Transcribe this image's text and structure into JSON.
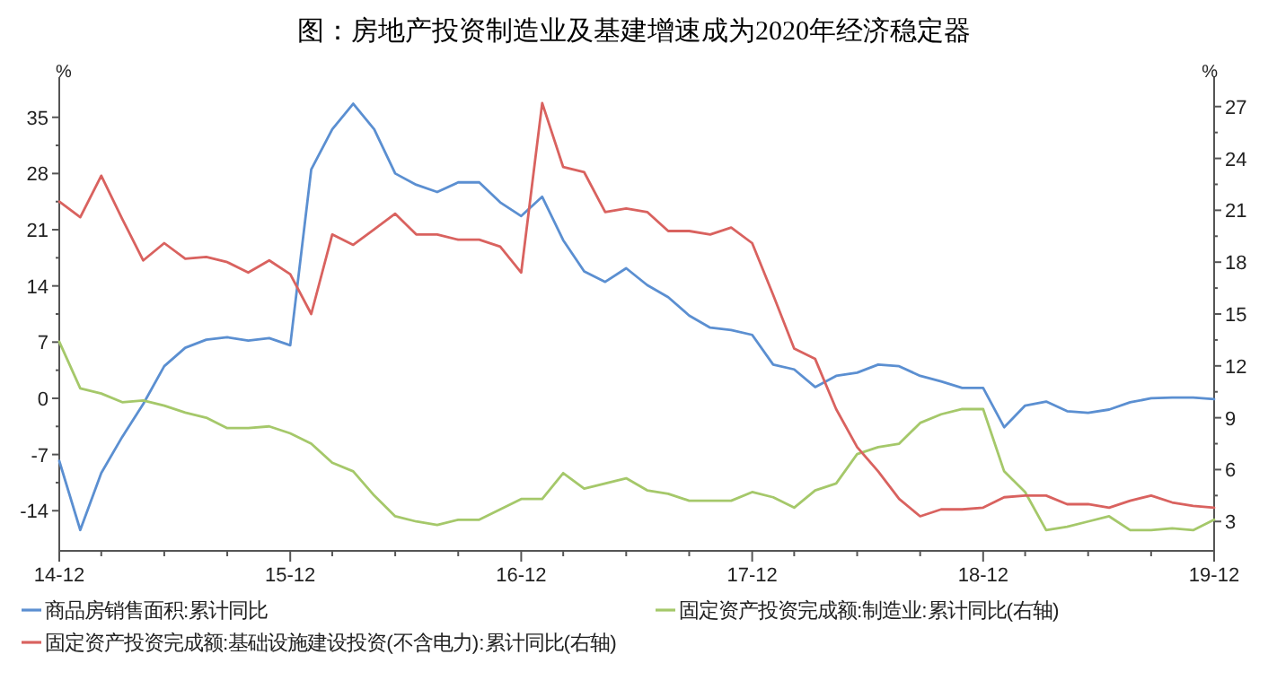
{
  "chart_data": {
    "type": "line",
    "title": "图：房地产投资制造业及基建增速成为2020年经济稳定器",
    "ylabel": "%",
    "y2label": "%",
    "categories": [
      "14-12",
      null,
      null,
      null,
      null,
      null,
      null,
      null,
      null,
      null,
      null,
      "15-12",
      null,
      null,
      null,
      null,
      null,
      null,
      null,
      null,
      null,
      null,
      "16-12",
      null,
      null,
      null,
      null,
      null,
      null,
      null,
      null,
      null,
      null,
      "17-12",
      null,
      null,
      null,
      null,
      null,
      null,
      null,
      null,
      null,
      null,
      "18-12",
      null,
      null,
      null,
      null,
      null,
      null,
      null,
      null,
      null,
      null,
      "19-12"
    ],
    "series": [
      {
        "name": "商品房销售面积:累计同比",
        "color": "#5b8fd1",
        "values": [
          -7.8,
          -16.4,
          -9.3,
          -4.8,
          -0.7,
          4.0,
          6.3,
          7.3,
          7.6,
          7.2,
          7.5,
          6.6,
          28.5,
          33.5,
          36.7,
          33.5,
          28.0,
          26.6,
          25.7,
          26.9,
          26.9,
          24.4,
          22.7,
          25.1,
          19.7,
          15.8,
          14.5,
          16.2,
          14.1,
          12.6,
          10.3,
          8.8,
          8.5,
          7.9,
          4.2,
          3.6,
          1.4,
          2.8,
          3.2,
          4.2,
          4.0,
          2.8,
          2.1,
          1.3,
          1.3,
          -3.6,
          -0.9,
          -0.4,
          -1.6,
          -1.8,
          -1.4,
          -0.5,
          0.0,
          0.1,
          0.1,
          -0.1
        ]
      },
      {
        "name": "固定资产投资完成额:制造业:累计同比(右轴)",
        "color": "#a5c86a",
        "axis": "y2",
        "values": [
          13.4,
          10.7,
          10.4,
          9.9,
          10.0,
          9.7,
          9.3,
          9.0,
          8.4,
          8.4,
          8.5,
          8.1,
          7.5,
          6.4,
          5.9,
          4.5,
          3.3,
          3.0,
          2.8,
          3.1,
          3.1,
          3.7,
          4.3,
          4.3,
          5.8,
          4.9,
          5.2,
          5.5,
          4.8,
          4.6,
          4.2,
          4.2,
          4.2,
          4.7,
          4.4,
          3.8,
          4.8,
          5.2,
          6.9,
          7.3,
          7.5,
          8.7,
          9.2,
          9.5,
          9.5,
          5.9,
          4.7,
          2.5,
          2.7,
          3.0,
          3.3,
          2.5,
          2.5,
          2.6,
          2.5,
          3.1
        ]
      },
      {
        "name": "固定资产投资完成额:基础设施建设投资(不含电力):累计同比(右轴)",
        "color": "#d9625f",
        "axis": "y2",
        "values": [
          21.5,
          20.6,
          23.0,
          20.5,
          18.1,
          19.1,
          18.2,
          18.3,
          18.0,
          17.4,
          18.1,
          17.3,
          15.0,
          19.6,
          19.0,
          19.9,
          20.8,
          19.6,
          19.6,
          19.3,
          19.3,
          18.9,
          17.4,
          27.2,
          23.5,
          23.2,
          20.9,
          21.1,
          20.9,
          19.8,
          19.8,
          19.6,
          20.0,
          19.1,
          16.1,
          13.0,
          12.4,
          9.5,
          7.3,
          5.9,
          4.3,
          3.3,
          3.7,
          3.7,
          3.8,
          4.4,
          4.5,
          4.5,
          4.0,
          4.0,
          3.8,
          4.2,
          4.5,
          4.1,
          3.9,
          3.8
        ]
      }
    ],
    "ylim": [
      -19,
      40
    ],
    "yticks": [
      -14,
      -7,
      0,
      7,
      14,
      21,
      28,
      35
    ],
    "y2lim": [
      1.3,
      28.7
    ],
    "y2ticks": [
      3,
      6,
      9,
      12,
      15,
      18,
      21,
      24,
      27
    ],
    "legend": "bottom"
  }
}
